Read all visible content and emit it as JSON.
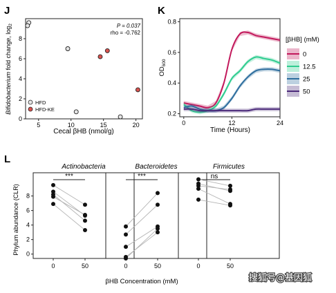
{
  "panels": {
    "j": {
      "letter": "J",
      "stat_p": "P = 0.037",
      "stat_rho": "rho = -0.762",
      "ylabel_main": "Bifidobacterium",
      "ylabel_rest": " fold change, log",
      "ylabel_sub": "2",
      "xlabel": "Cecal βHB (nmol/g)",
      "legend": [
        "HFD",
        "HFD-KE"
      ]
    },
    "k": {
      "letter": "K",
      "ylabel_main": "OD",
      "ylabel_sub": "600",
      "xlabel": "Time (Hours)",
      "legend_title": "[βHB] (mM)",
      "legend": [
        "0",
        "12.5",
        "25",
        "50"
      ]
    },
    "l": {
      "letter": "L",
      "ylabel": "Phylum abundance (CLR)",
      "xlabel": "βHB Concentration (mM)",
      "titles": [
        "Actinobacteria",
        "Bacteroidetes",
        "Firmicutes"
      ],
      "significance": [
        "***",
        "***",
        "ns"
      ]
    }
  },
  "watermark": "搜狐号@基因狐",
  "colors": {
    "hfd_fill": "#e5e5e5",
    "hfd_ke_fill": "#d9534f",
    "series": [
      "#c2185b",
      "#2ecc8f",
      "#2e6e9e",
      "#4b2a7a"
    ]
  },
  "chart_data": [
    {
      "type": "scatter",
      "xlim": [
        3,
        21
      ],
      "ylim": [
        0,
        10
      ],
      "xticks": [
        5,
        10,
        15,
        20
      ],
      "yticks": [
        0,
        2,
        4,
        6,
        8
      ],
      "series": [
        {
          "name": "HFD",
          "points": [
            [
              3.5,
              9.6
            ],
            [
              3.3,
              9.3
            ],
            [
              9.5,
              7.0
            ],
            [
              10.8,
              0.7
            ],
            [
              17.6,
              0.2
            ]
          ]
        },
        {
          "name": "HFD-KE",
          "points": [
            [
              14.5,
              6.2
            ],
            [
              15.6,
              6.8
            ],
            [
              20.3,
              2.9
            ]
          ]
        }
      ]
    },
    {
      "type": "line",
      "xlim": [
        -1,
        24
      ],
      "ylim": [
        0.18,
        0.82
      ],
      "xticks": [
        0,
        12,
        24
      ],
      "yticks": [
        0.2,
        0.4,
        0.6,
        0.8
      ],
      "x": [
        0,
        2,
        4,
        6,
        8,
        10,
        12,
        14,
        16,
        18,
        20,
        22,
        24
      ],
      "series": [
        {
          "name": "0",
          "values": [
            0.27,
            0.26,
            0.25,
            0.24,
            0.27,
            0.4,
            0.62,
            0.72,
            0.73,
            0.71,
            0.7,
            0.69,
            0.68
          ]
        },
        {
          "name": "12.5",
          "values": [
            0.26,
            0.22,
            0.21,
            0.22,
            0.25,
            0.33,
            0.43,
            0.48,
            0.54,
            0.57,
            0.56,
            0.55,
            0.53
          ]
        },
        {
          "name": "25",
          "values": [
            0.24,
            0.25,
            0.23,
            0.22,
            0.22,
            0.24,
            0.3,
            0.38,
            0.44,
            0.48,
            0.49,
            0.49,
            0.48
          ]
        },
        {
          "name": "50",
          "values": [
            0.23,
            0.23,
            0.22,
            0.22,
            0.22,
            0.22,
            0.22,
            0.22,
            0.22,
            0.23,
            0.23,
            0.23,
            0.23
          ]
        }
      ]
    },
    {
      "type": "scatter",
      "categories": [
        "0",
        "50"
      ],
      "ylim": [
        -0.6,
        11.2
      ],
      "yticks": [
        0,
        2,
        4,
        6,
        8
      ],
      "panels": [
        {
          "title": "Actinobacteria",
          "significance": "***",
          "pairs": [
            [
              9.5,
              6.8
            ],
            [
              8.6,
              5.3
            ],
            [
              8.2,
              4.6
            ],
            [
              7.9,
              5.4
            ],
            [
              6.9,
              3.3
            ]
          ]
        },
        {
          "title": "Bacteroidetes",
          "significance": "***",
          "pairs": [
            [
              3.8,
              8.4
            ],
            [
              2.7,
              6.8
            ],
            [
              1.0,
              3.8
            ],
            [
              -0.4,
              3.0
            ],
            [
              -0.6,
              3.5
            ]
          ]
        },
        {
          "title": "Firmicutes",
          "significance": "ns",
          "pairs": [
            [
              10.3,
              9.4
            ],
            [
              9.7,
              8.7
            ],
            [
              9.4,
              8.9
            ],
            [
              9.0,
              6.9
            ],
            [
              7.5,
              6.7
            ]
          ]
        }
      ]
    }
  ]
}
